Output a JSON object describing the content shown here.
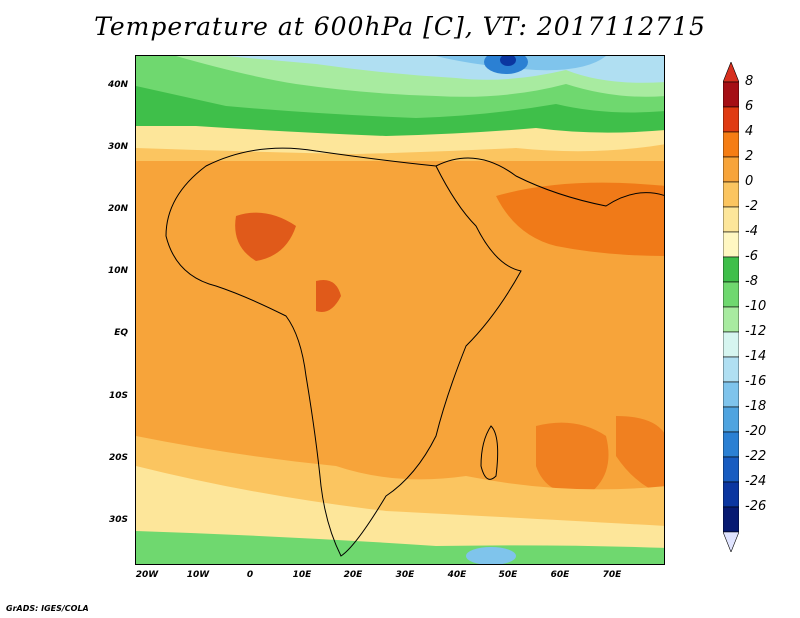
{
  "title": "Temperature at 600hPa [C], VT: 2017112715",
  "credit": "GrADS: IGES/COLA",
  "lat_ticks": [
    "40N",
    "30N",
    "20N",
    "10N",
    "EQ",
    "10S",
    "20S",
    "30S"
  ],
  "lon_ticks": [
    "20W",
    "10W",
    "0",
    "10E",
    "20E",
    "30E",
    "40E",
    "50E",
    "60E",
    "70E"
  ],
  "colorbar": {
    "labels": [
      "8",
      "6",
      "4",
      "2",
      "0",
      "-2",
      "-4",
      "-6",
      "-8",
      "-10",
      "-12",
      "-14",
      "-16",
      "-18",
      "-20",
      "-22",
      "-24",
      "-26"
    ],
    "colors": [
      "#a50f15",
      "#e03b12",
      "#f57d14",
      "#f7a43a",
      "#fbc560",
      "#fde69a",
      "#fff7c2",
      "#3fbf4a",
      "#6fd86f",
      "#a8eba0",
      "#d6f5f0",
      "#b0dff2",
      "#7fc4ec",
      "#4fa4e0",
      "#2b80d3",
      "#185cc1",
      "#0b36a0",
      "#071a72"
    ],
    "top_arrow_color": "#d7301f",
    "bottom_arrow_color": "#e0e4ff"
  }
}
